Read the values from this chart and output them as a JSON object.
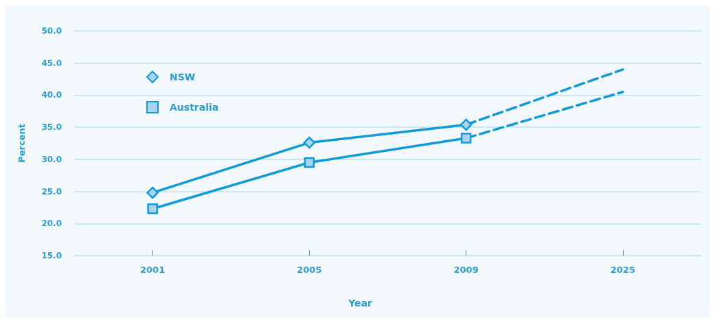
{
  "chart_data": {
    "type": "line",
    "xlabel": "Year",
    "ylabel": "Percent",
    "categories": [
      "2001",
      "2005",
      "2009",
      "2025"
    ],
    "series": [
      {
        "name": "NSW",
        "color": "#0f9bd7",
        "marker": "diamond",
        "line_style": "solid",
        "values": [
          24.8,
          32.6,
          35.4,
          null
        ]
      },
      {
        "name": "Australia",
        "color": "#0f9bd7",
        "marker": "square",
        "line_style": "solid",
        "values": [
          22.3,
          29.5,
          33.3,
          null
        ]
      },
      {
        "color": "#0f9bd7",
        "line_style": "dashed",
        "values": [
          null,
          null,
          35.4,
          44.0
        ]
      },
      {
        "color": "#0f9bd7",
        "line_style": "dashed",
        "values": [
          null,
          null,
          33.3,
          40.5
        ]
      }
    ],
    "ylim": [
      15,
      50
    ],
    "yticks": [
      {
        "value": 15,
        "label": "15.0"
      },
      {
        "value": 20,
        "label": "20.0"
      },
      {
        "value": 25,
        "label": "25.0"
      },
      {
        "value": 30,
        "label": "30.0"
      },
      {
        "value": 35,
        "label": "35.0"
      },
      {
        "value": 40,
        "label": "40.0"
      },
      {
        "value": 45,
        "label": "45.0"
      },
      {
        "value": 50,
        "label": "50.0"
      }
    ],
    "grid": "y",
    "legend": "top left"
  }
}
